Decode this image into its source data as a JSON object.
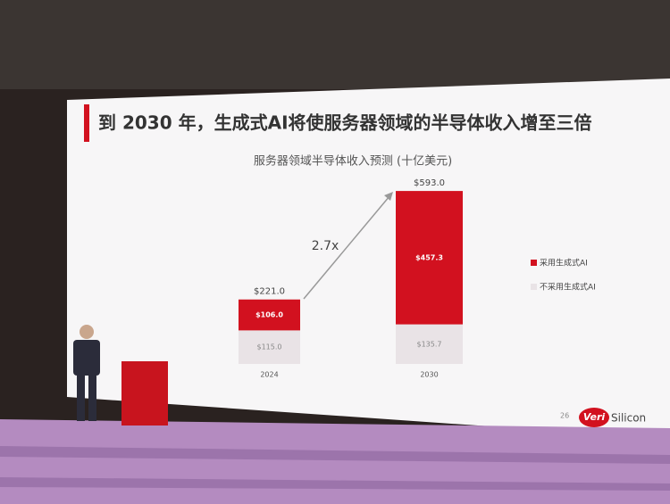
{
  "slide_title": "到 2030 年，生成式AI将使服务器领域的半导体收入增至三倍",
  "chart_data": {
    "type": "bar",
    "stacked": true,
    "title": "服务器领域半导体收入预测 (十亿美元)",
    "categories": [
      "2024",
      "2030"
    ],
    "series": [
      {
        "name": "采用生成式AI",
        "color": "#d2111f",
        "values": [
          106.0,
          457.3
        ],
        "value_labels": [
          "$106.0",
          "$457.3"
        ]
      },
      {
        "name": "不采用生成式AI",
        "color": "#e9e3e6",
        "values": [
          115.0,
          135.7
        ],
        "value_labels": [
          "$115.0",
          "$135.7"
        ]
      }
    ],
    "totals": {
      "values": [
        221.0,
        593.0
      ],
      "value_labels": [
        "$221.0",
        "$593.0"
      ]
    },
    "annotation": "2.7x"
  },
  "page_number": "26",
  "logo": {
    "part1": "Veri",
    "part2": "Silicon"
  }
}
